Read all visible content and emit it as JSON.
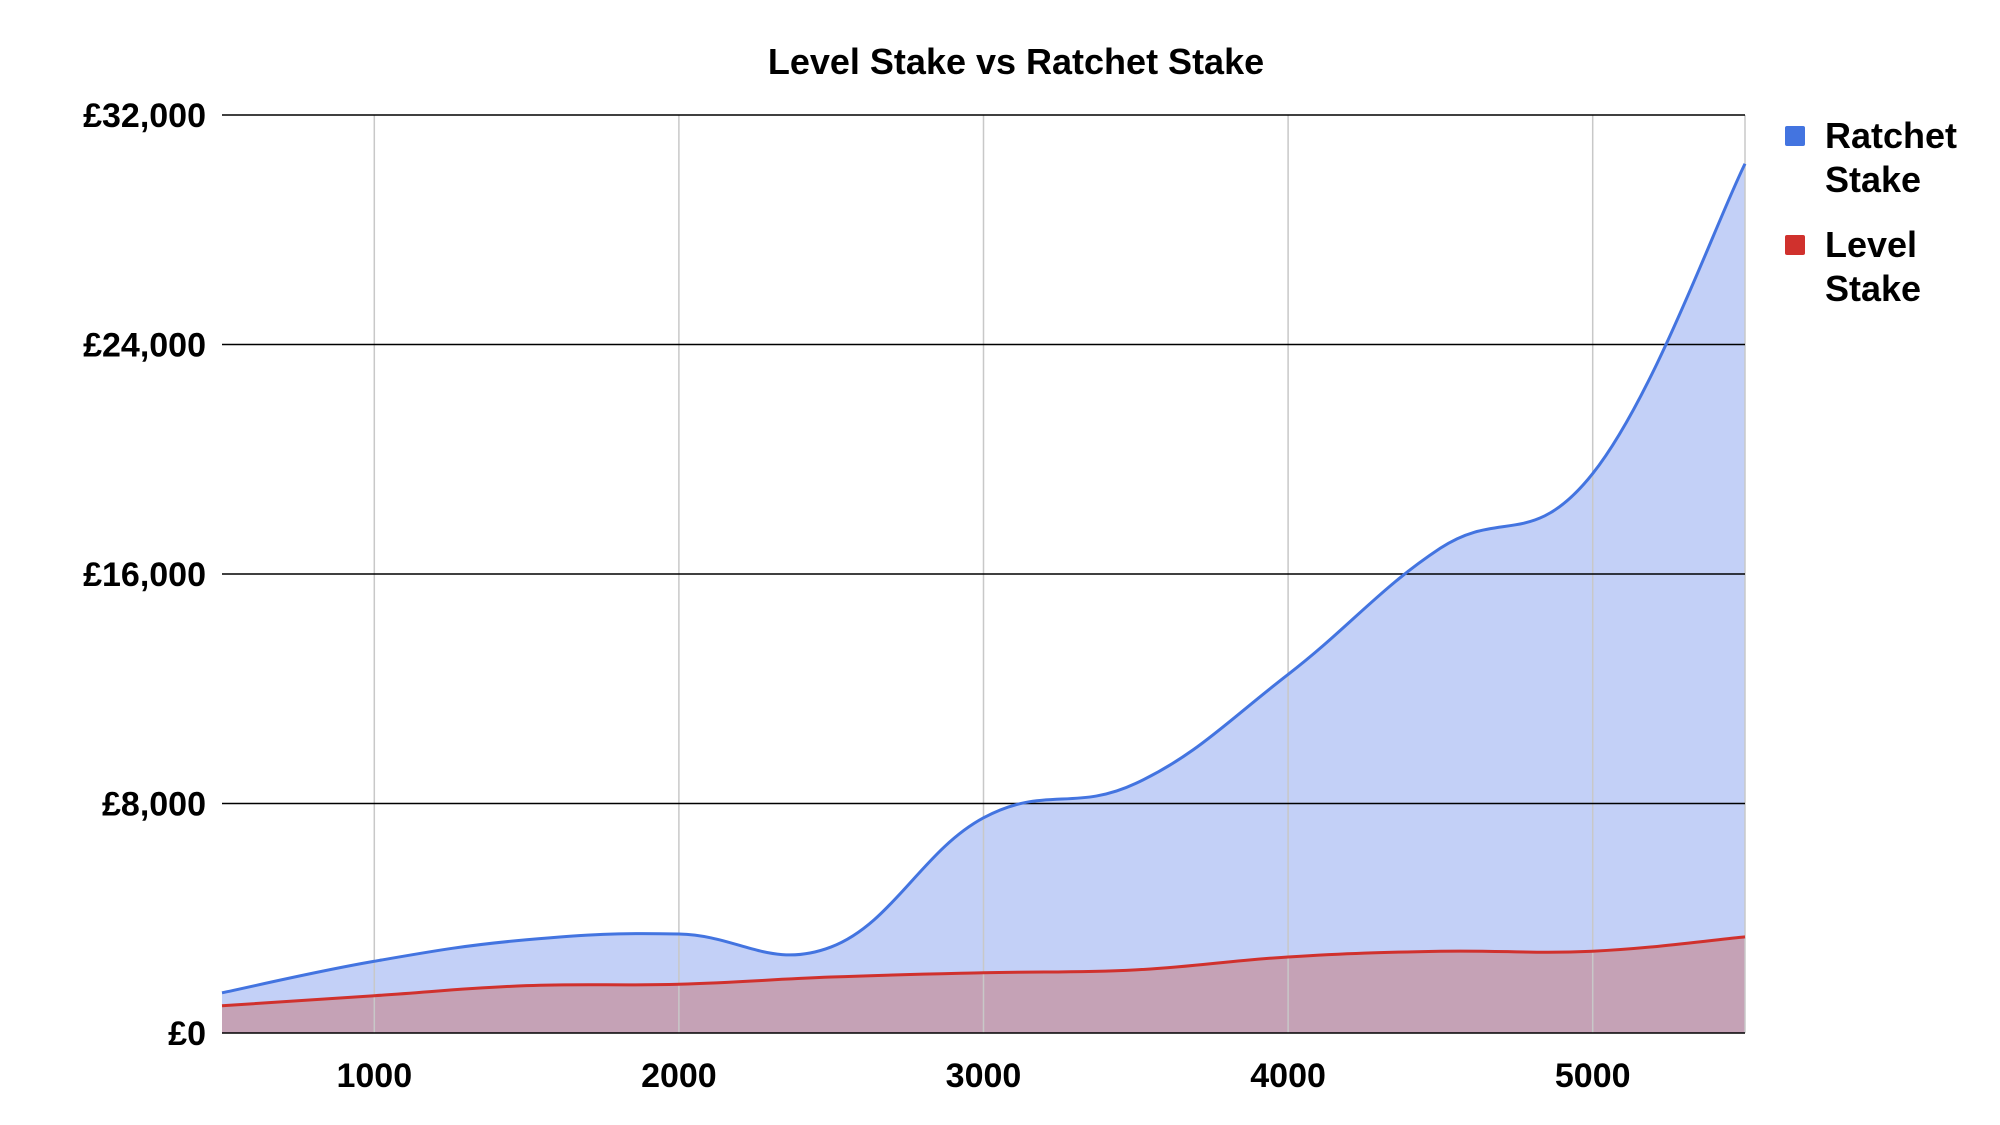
{
  "chart_data": {
    "type": "area",
    "title": "Level Stake vs Ratchet Stake",
    "xlabel": "",
    "ylabel": "",
    "xlim": [
      500,
      5500
    ],
    "ylim": [
      0,
      32000
    ],
    "x_ticks": [
      1000,
      2000,
      3000,
      4000,
      5000
    ],
    "y_ticks": [
      0,
      8000,
      16000,
      24000,
      32000
    ],
    "y_tick_labels": [
      "£0",
      "£8,000",
      "£16,000",
      "£24,000",
      "£32,000"
    ],
    "x_tick_labels": [
      "1000",
      "2000",
      "3000",
      "4000",
      "5000"
    ],
    "grid": true,
    "legend": "right",
    "series": [
      {
        "name": "Ratchet Stake",
        "legend_label": [
          "Ratchet",
          "Stake"
        ],
        "color": "#4374e0",
        "fill": "#c3d0f7",
        "x": [
          500,
          1000,
          1500,
          2000,
          2500,
          3000,
          3500,
          4000,
          4500,
          5000,
          5500
        ],
        "y": [
          1400,
          2500,
          3250,
          3450,
          3000,
          7500,
          8700,
          12500,
          16900,
          19500,
          30300
        ]
      },
      {
        "name": "Level Stake",
        "legend_label": [
          "Level",
          "Stake"
        ],
        "color": "#d0312d",
        "fill": "#c5a2b6",
        "x": [
          500,
          1000,
          1500,
          2000,
          2500,
          3000,
          3500,
          4000,
          4500,
          5000,
          5500
        ],
        "y": [
          950,
          1300,
          1650,
          1700,
          1950,
          2100,
          2200,
          2650,
          2850,
          2850,
          3350
        ]
      }
    ]
  }
}
